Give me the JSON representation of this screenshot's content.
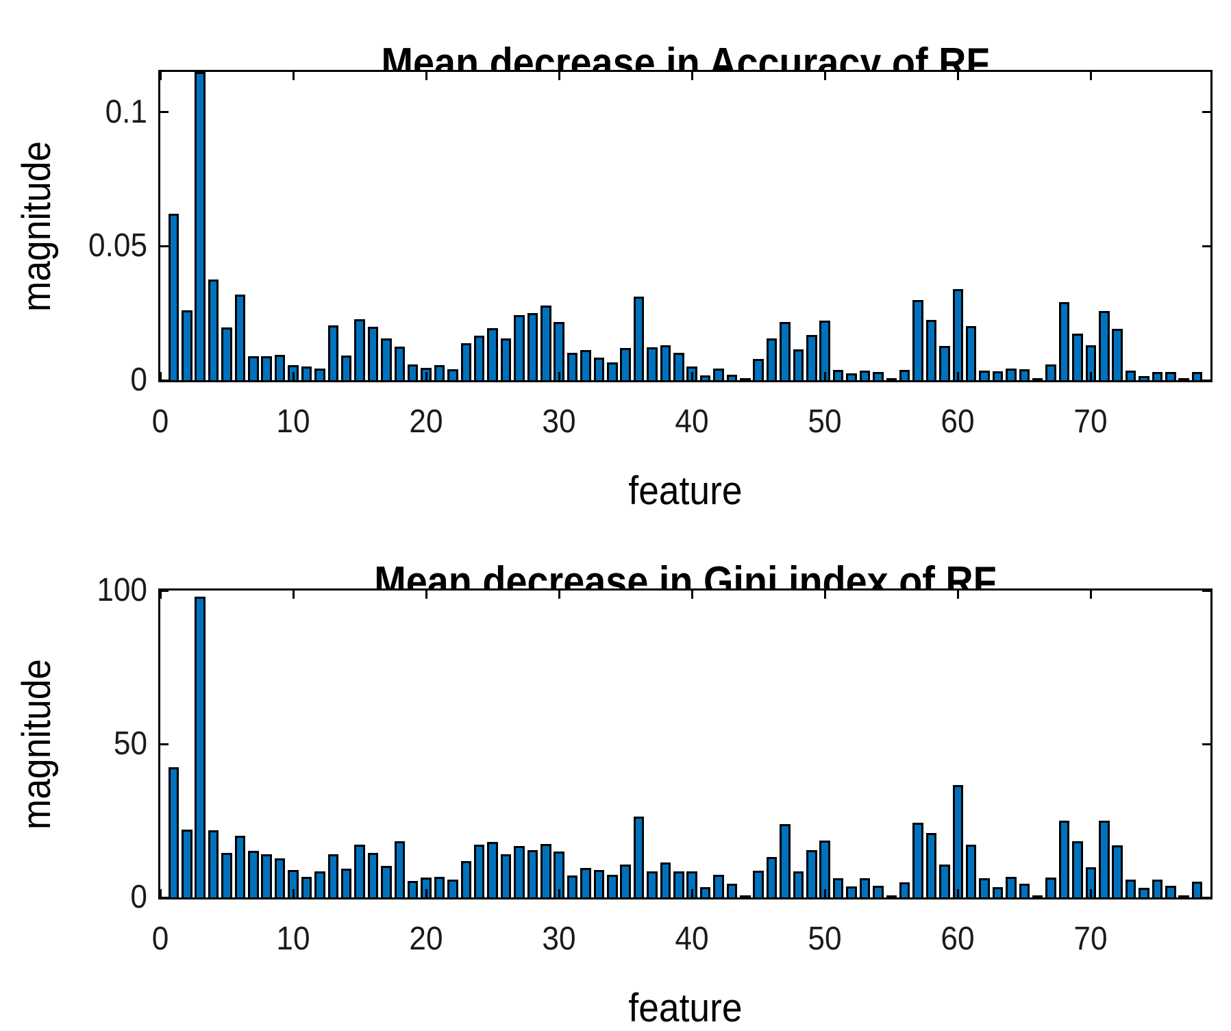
{
  "figure": {
    "background": "#ffffff",
    "bar_color": "#0072BD",
    "bar_edge_color": "#000000",
    "axis_color": "#000000",
    "text_color": "#1a1a1a"
  },
  "chart_data": [
    {
      "type": "bar",
      "title": "Mean decrease in Accuracy of RF",
      "xlabel": "feature",
      "ylabel": "magnitude",
      "grid": false,
      "legend_position": "none",
      "bar_width": 0.8,
      "xlim": [
        0,
        79
      ],
      "ylim": [
        0,
        0.115
      ],
      "xticks": [
        0,
        10,
        20,
        30,
        40,
        50,
        60,
        70
      ],
      "xtick_labels": [
        "0",
        "10",
        "20",
        "30",
        "40",
        "50",
        "60",
        "70"
      ],
      "yticks": [
        0,
        0.05,
        0.1
      ],
      "ytick_labels": [
        "0",
        "0.05",
        "0.1"
      ],
      "x": [
        1,
        2,
        3,
        4,
        5,
        6,
        7,
        8,
        9,
        10,
        11,
        12,
        13,
        14,
        15,
        16,
        17,
        18,
        19,
        20,
        21,
        22,
        23,
        24,
        25,
        26,
        27,
        28,
        29,
        30,
        31,
        32,
        33,
        34,
        35,
        36,
        37,
        38,
        39,
        40,
        41,
        42,
        43,
        44,
        45,
        46,
        47,
        48,
        49,
        50,
        51,
        52,
        53,
        54,
        55,
        56,
        57,
        58,
        59,
        60,
        61,
        62,
        63,
        64,
        65,
        66,
        67,
        68,
        69,
        70,
        71,
        72,
        73,
        74,
        75,
        76,
        77,
        78
      ],
      "values": [
        0.062,
        0.026,
        0.115,
        0.0375,
        0.0196,
        0.032,
        0.009,
        0.009,
        0.0095,
        0.0055,
        0.005,
        0.0043,
        0.0205,
        0.0092,
        0.0227,
        0.0199,
        0.0157,
        0.0124,
        0.0059,
        0.0046,
        0.0057,
        0.0041,
        0.0139,
        0.0166,
        0.0194,
        0.0156,
        0.0243,
        0.0251,
        0.0279,
        0.0216,
        0.0101,
        0.0112,
        0.0085,
        0.0066,
        0.0119,
        0.0313,
        0.0122,
        0.013,
        0.0101,
        0.0051,
        0.0017,
        0.0044,
        0.0021,
        0.0005,
        0.0079,
        0.0156,
        0.0216,
        0.0115,
        0.0169,
        0.0222,
        0.0038,
        0.0026,
        0.0037,
        0.003,
        0.0005,
        0.0038,
        0.0299,
        0.0226,
        0.0128,
        0.0341,
        0.0202,
        0.0037,
        0.0034,
        0.0044,
        0.004,
        0.0005,
        0.006,
        0.0292,
        0.0175,
        0.013,
        0.0258,
        0.0192,
        0.0037,
        0.0015,
        0.0031,
        0.0031,
        0.0005,
        0.0031
      ]
    },
    {
      "type": "bar",
      "title": "Mean decrease in Gini index of RF",
      "xlabel": "feature",
      "ylabel": "magnitude",
      "grid": false,
      "legend_position": "none",
      "bar_width": 0.8,
      "xlim": [
        0,
        79
      ],
      "ylim": [
        0,
        100
      ],
      "xticks": [
        0,
        10,
        20,
        30,
        40,
        50,
        60,
        70
      ],
      "xtick_labels": [
        "0",
        "10",
        "20",
        "30",
        "40",
        "50",
        "60",
        "70"
      ],
      "yticks": [
        0,
        50,
        100
      ],
      "ytick_labels": [
        "0",
        "50",
        "100"
      ],
      "x": [
        1,
        2,
        3,
        4,
        5,
        6,
        7,
        8,
        9,
        10,
        11,
        12,
        13,
        14,
        15,
        16,
        17,
        18,
        19,
        20,
        21,
        22,
        23,
        24,
        25,
        26,
        27,
        28,
        29,
        30,
        31,
        32,
        33,
        34,
        35,
        36,
        37,
        38,
        39,
        40,
        41,
        42,
        43,
        44,
        45,
        46,
        47,
        48,
        49,
        50,
        51,
        52,
        53,
        54,
        55,
        56,
        57,
        58,
        59,
        60,
        61,
        62,
        63,
        64,
        65,
        66,
        67,
        68,
        69,
        70,
        71,
        72,
        73,
        74,
        75,
        76,
        77,
        78
      ],
      "values": [
        42.5,
        22,
        98,
        21.8,
        14.5,
        20,
        15.1,
        14,
        12.8,
        8.9,
        6.8,
        8.4,
        14.1,
        9.3,
        17.3,
        14.5,
        10.2,
        18.3,
        5.4,
        6.5,
        6.6,
        5.7,
        11.9,
        17.1,
        18,
        14.1,
        16.7,
        15.3,
        17.5,
        14.9,
        7.1,
        9.7,
        8.9,
        7.3,
        10.8,
        26.4,
        8.4,
        11.4,
        8.4,
        8.4,
        3.3,
        7.4,
        4.5,
        0.4,
        8.6,
        13.1,
        23.8,
        8.4,
        15.4,
        18.6,
        6.2,
        3.6,
        6.2,
        3.7,
        0.4,
        4.9,
        24.3,
        21,
        10.8,
        36.5,
        17.1,
        6.3,
        3.4,
        6.6,
        4.5,
        0.4,
        6.5,
        25.1,
        18.4,
        9.9,
        25.1,
        16.9,
        5.9,
        3.2,
        5.8,
        3.9,
        0.4,
        5.1
      ]
    }
  ]
}
